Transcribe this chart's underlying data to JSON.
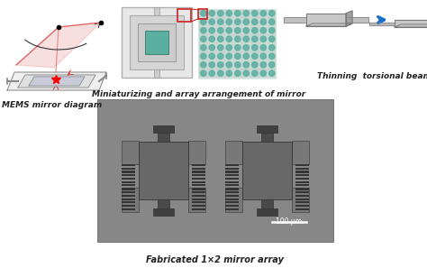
{
  "fig_width": 4.74,
  "fig_height": 2.97,
  "dpi": 100,
  "bg_color": "#ffffff",
  "label_mems": "MEMS mirror diagram",
  "label_mini": "Miniaturizing and array arrangement of mirror",
  "label_thin": "Thinning  torsional beam",
  "label_fab": "Fabricated 1×2 mirror array",
  "scale_bar_text": "100 μm",
  "mirror_color": "#5aafa0",
  "sem_bg": "#888888",
  "sem_dark": "#3a3a3a",
  "arrow_color": "#1a6fcc",
  "laser_color": "#e06060",
  "red_box_color": "#cc2222",
  "text_color": "#222222",
  "label_fontsize": 6.5,
  "grid_dot_color": "#5aafa0",
  "frame_outer": "#c8c8c8",
  "frame_mid": "#b0b0b0",
  "torsion_gray": "#a0a0a0"
}
